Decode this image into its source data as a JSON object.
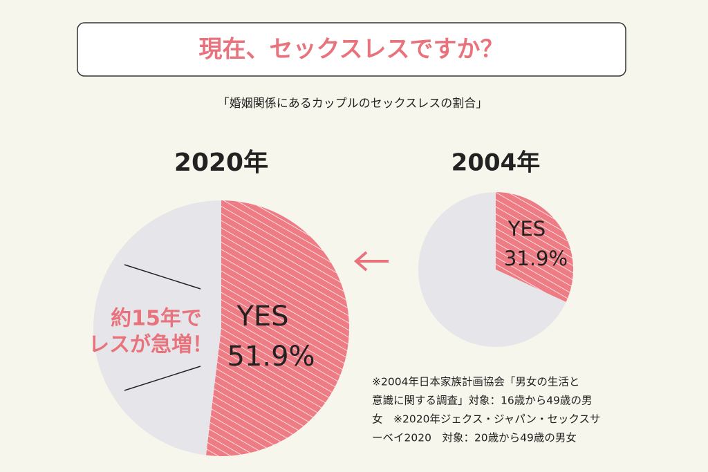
{
  "header": {
    "title": "現在、セックスレスですか？",
    "subtitle": "「婚姻関係にあるカップルのセックスレスの割合」"
  },
  "chart_data": [
    {
      "type": "pie",
      "title": "2020年",
      "categories": [
        "YES",
        null
      ],
      "values": [
        51.9,
        48.1
      ],
      "value_labels": [
        "51.9%",
        null
      ],
      "colors": [
        "#ee7c84",
        "#e6e5e9"
      ]
    },
    {
      "type": "pie",
      "title": "2004年",
      "categories": [
        "YES",
        null
      ],
      "values": [
        31.9,
        68.1
      ],
      "value_labels": [
        "31.9%",
        null
      ],
      "colors": [
        "#ee7c84",
        "#e6e5e9"
      ]
    }
  ],
  "annotation": [
    "約15年で",
    "レスが急増！"
  ],
  "note": [
    "※2004年日本家族計画協会「男女の生活と",
    "意識に関する調査」対象：16歳から49歳の男",
    "女　※2020年ジェクス・ジャパン・セックスサ",
    "ーベイ2020　対象：20歳から49歳の男女"
  ]
}
